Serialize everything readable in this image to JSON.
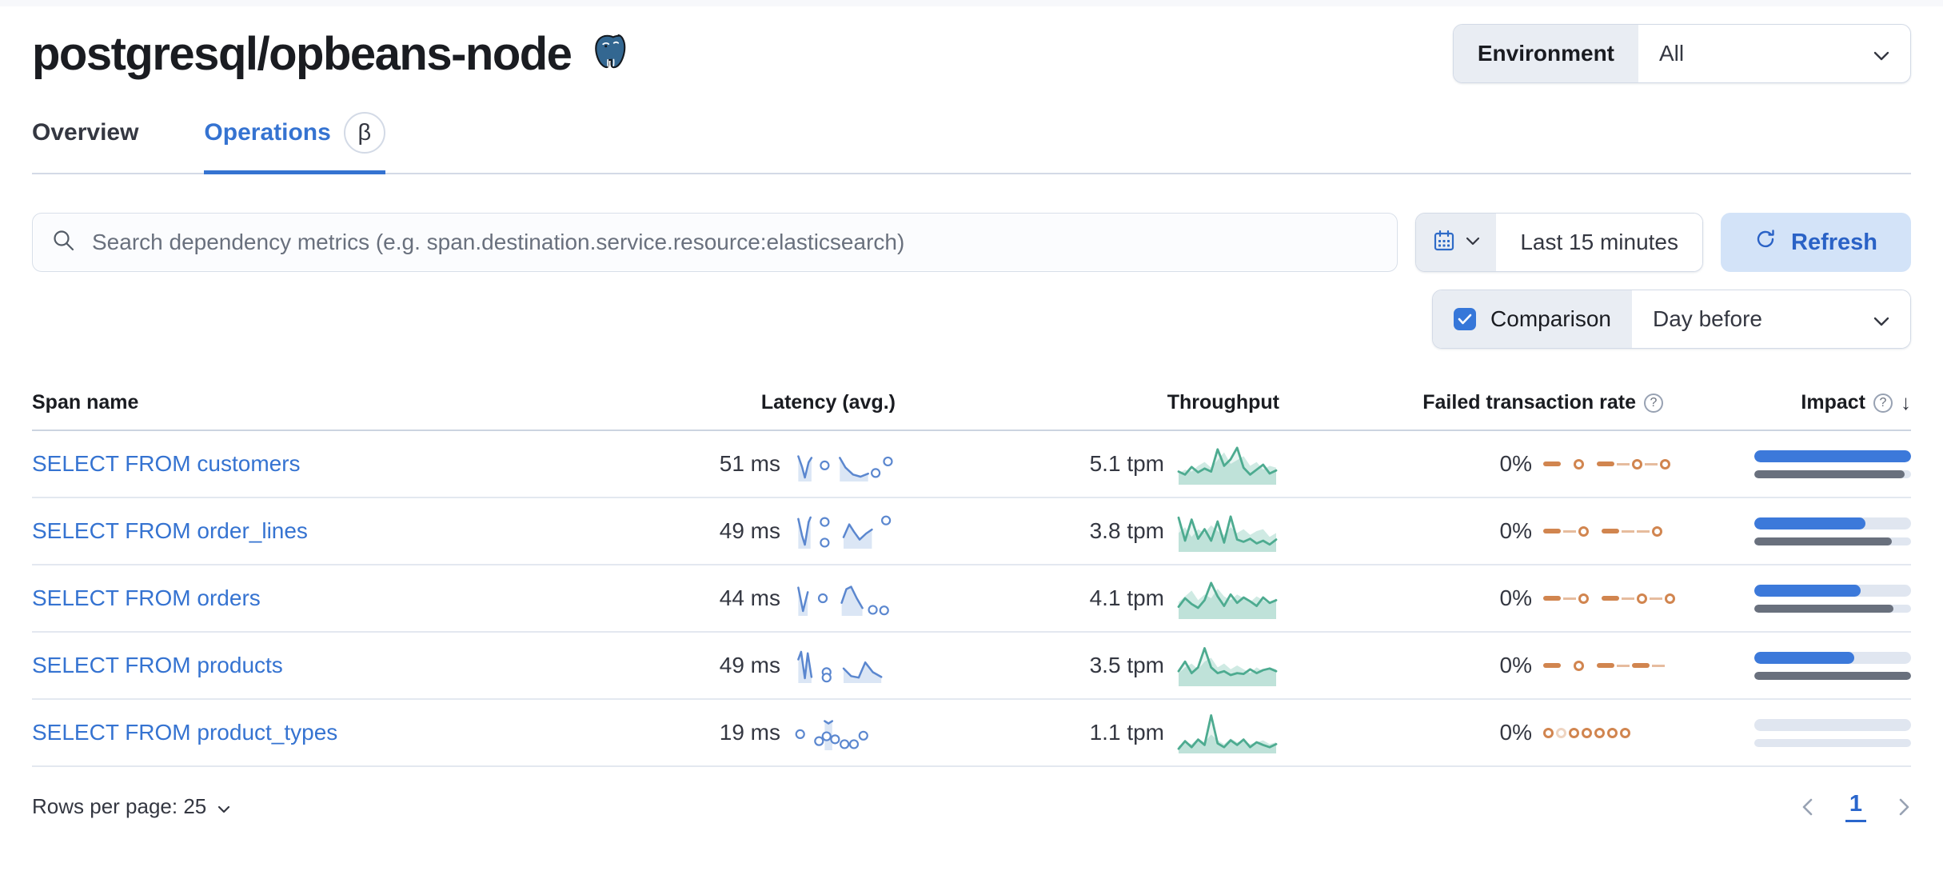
{
  "header": {
    "title": "postgresql/opbeans-node",
    "environment_label": "Environment",
    "environment_value": "All"
  },
  "tabs": [
    {
      "label": "Overview",
      "active": false
    },
    {
      "label": "Operations",
      "active": true,
      "badge": "β"
    }
  ],
  "toolbar": {
    "search_placeholder": "Search dependency metrics (e.g. span.destination.service.resource:elasticsearch)",
    "time_range": "Last 15 minutes",
    "refresh_label": "Refresh",
    "comparison_label": "Comparison",
    "comparison_checked": true,
    "comparison_value": "Day before"
  },
  "icons": {
    "question_mark": "?",
    "sort_desc": "↓"
  },
  "table": {
    "columns": {
      "span": "Span name",
      "latency": "Latency (avg.)",
      "throughput": "Throughput",
      "failed": "Failed transaction rate",
      "impact": "Impact"
    },
    "rows": [
      {
        "span_name": "SELECT FROM customers",
        "latency": "51 ms",
        "throughput": "5.1 tpm",
        "failed_rate": "0%",
        "impact_pct": 100,
        "impact_prev_pct": 96,
        "latency_spark": {
          "lines": [
            [
              [
                0.02,
                0.75
              ],
              [
                0.06,
                0.4
              ],
              [
                0.09,
                0.05
              ],
              [
                0.13,
                0.55
              ],
              [
                0.16,
                0.7
              ]
            ],
            [
              [
                0.46,
                0.7
              ],
              [
                0.52,
                0.38
              ],
              [
                0.6,
                0.15
              ],
              [
                0.68,
                0.08
              ],
              [
                0.76,
                0.18
              ]
            ]
          ],
          "dots": [
            [
              0.3,
              0.45
            ],
            [
              0.84,
              0.2
            ],
            [
              0.97,
              0.58
            ]
          ]
        },
        "throughput_spark": {
          "line": [
            0.3,
            0.22,
            0.42,
            0.28,
            0.38,
            0.3,
            0.88,
            0.45,
            0.62,
            0.92,
            0.4,
            0.22,
            0.35,
            0.48,
            0.25,
            0.33
          ],
          "comparison": [
            0.25,
            0.35,
            0.3,
            0.45,
            0.55,
            0.4,
            0.6,
            0.8,
            0.5,
            0.6,
            0.7,
            0.45,
            0.55,
            0.35,
            0.45,
            0.4
          ]
        },
        "failed_spark": [
          "dash",
          "gap",
          "ring",
          "gap",
          "dash",
          "thin",
          "ring",
          "thin",
          "ring"
        ]
      },
      {
        "span_name": "SELECT FROM order_lines",
        "latency": "49 ms",
        "throughput": "3.8 tpm",
        "failed_rate": "0%",
        "impact_pct": 71,
        "impact_prev_pct": 88,
        "latency_spark": {
          "lines": [
            [
              [
                0.02,
                0.9
              ],
              [
                0.06,
                0.35
              ],
              [
                0.09,
                0.05
              ],
              [
                0.13,
                0.8
              ],
              [
                0.15,
                0.95
              ]
            ],
            [
              [
                0.5,
                0.3
              ],
              [
                0.56,
                0.72
              ],
              [
                0.61,
                0.48
              ],
              [
                0.67,
                0.22
              ],
              [
                0.74,
                0.42
              ],
              [
                0.8,
                0.55
              ]
            ]
          ],
          "dots": [
            [
              0.3,
              0.8
            ],
            [
              0.3,
              0.12
            ],
            [
              0.95,
              0.85
            ]
          ]
        },
        "throughput_spark": {
          "line": [
            0.85,
            0.25,
            0.8,
            0.3,
            0.55,
            0.25,
            0.75,
            0.2,
            0.88,
            0.28,
            0.22,
            0.3,
            0.18,
            0.25,
            0.15,
            0.28
          ],
          "comparison": [
            0.45,
            0.6,
            0.35,
            0.55,
            0.45,
            0.65,
            0.5,
            0.4,
            0.6,
            0.45,
            0.55,
            0.4,
            0.5,
            0.55,
            0.35,
            0.45
          ]
        },
        "failed_spark": [
          "dash",
          "thin",
          "ring",
          "gap",
          "dash",
          "thin",
          "thin",
          "ring"
        ]
      },
      {
        "span_name": "SELECT FROM orders",
        "latency": "44 ms",
        "throughput": "4.1 tpm",
        "failed_rate": "0%",
        "impact_pct": 68,
        "impact_prev_pct": 89,
        "latency_spark": {
          "lines": [
            [
              [
                0.02,
                0.85
              ],
              [
                0.07,
                0.08
              ],
              [
                0.12,
                0.7
              ]
            ],
            [
              [
                0.48,
                0.35
              ],
              [
                0.53,
                0.8
              ],
              [
                0.58,
                0.88
              ],
              [
                0.64,
                0.5
              ],
              [
                0.7,
                0.18
              ]
            ]
          ],
          "dots": [
            [
              0.28,
              0.5
            ],
            [
              0.81,
              0.12
            ],
            [
              0.93,
              0.1
            ]
          ]
        },
        "throughput_spark": {
          "line": [
            0.28,
            0.5,
            0.35,
            0.25,
            0.45,
            0.9,
            0.55,
            0.3,
            0.6,
            0.38,
            0.52,
            0.42,
            0.3,
            0.52,
            0.38,
            0.45
          ],
          "comparison": [
            0.4,
            0.55,
            0.7,
            0.45,
            0.6,
            0.5,
            0.75,
            0.55,
            0.45,
            0.6,
            0.5,
            0.4,
            0.55,
            0.45,
            0.35,
            0.5
          ]
        },
        "failed_spark": [
          "dash",
          "thin",
          "ring",
          "gap",
          "dash",
          "thin",
          "ring",
          "thin",
          "ring"
        ]
      },
      {
        "span_name": "SELECT FROM products",
        "latency": "49 ms",
        "throughput": "3.5 tpm",
        "failed_rate": "0%",
        "impact_pct": 64,
        "impact_prev_pct": 100,
        "latency_spark": {
          "lines": [
            [
              [
                0.02,
                0.7
              ],
              [
                0.05,
                0.95
              ],
              [
                0.09,
                0.08
              ],
              [
                0.12,
                0.9
              ],
              [
                0.16,
                0.12
              ]
            ],
            [
              [
                0.5,
                0.4
              ],
              [
                0.58,
                0.15
              ],
              [
                0.66,
                0.1
              ],
              [
                0.73,
                0.6
              ],
              [
                0.81,
                0.28
              ],
              [
                0.9,
                0.12
              ]
            ]
          ],
          "dots": [
            [
              0.32,
              0.28
            ],
            [
              0.32,
              0.1
            ]
          ]
        },
        "throughput_spark": {
          "line": [
            0.35,
            0.6,
            0.3,
            0.45,
            0.95,
            0.45,
            0.3,
            0.35,
            0.25,
            0.3,
            0.28,
            0.4,
            0.3,
            0.38,
            0.42,
            0.35
          ],
          "comparison": [
            0.3,
            0.45,
            0.55,
            0.4,
            0.6,
            0.7,
            0.45,
            0.55,
            0.4,
            0.5,
            0.4,
            0.3,
            0.45,
            0.35,
            0.45,
            0.4
          ]
        },
        "failed_spark": [
          "dash",
          "gap",
          "ring",
          "gap",
          "dash",
          "thin",
          "dash",
          "thin"
        ]
      },
      {
        "span_name": "SELECT FROM product_types",
        "latency": "19 ms",
        "throughput": "1.1 tpm",
        "failed_rate": "0%",
        "impact_pct": 0,
        "impact_prev_pct": 0,
        "latency_spark": {
          "lines": [
            [
              [
                0.3,
                0.88
              ],
              [
                0.34,
                0.8
              ],
              [
                0.38,
                0.88
              ]
            ]
          ],
          "dots": [
            [
              0.04,
              0.45
            ],
            [
              0.24,
              0.22
            ],
            [
              0.32,
              0.38
            ],
            [
              0.41,
              0.28
            ],
            [
              0.51,
              0.12
            ],
            [
              0.61,
              0.12
            ],
            [
              0.71,
              0.4
            ]
          ]
        },
        "throughput_spark": {
          "line": [
            0.08,
            0.28,
            0.12,
            0.32,
            0.18,
            0.95,
            0.22,
            0.12,
            0.3,
            0.18,
            0.32,
            0.12,
            0.25,
            0.18,
            0.12,
            0.2
          ],
          "comparison": [
            0.15,
            0.25,
            0.2,
            0.35,
            0.25,
            0.45,
            0.3,
            0.2,
            0.35,
            0.25,
            0.3,
            0.2,
            0.25,
            0.3,
            0.2,
            0.25
          ]
        },
        "failed_spark": [
          "ring",
          "ring-faded",
          "ring",
          "ring",
          "ring",
          "ring",
          "ring"
        ]
      }
    ]
  },
  "footer": {
    "rows_per_page_label": "Rows per page: 25",
    "page": "1"
  },
  "colors": {
    "link_blue": "#3573d1",
    "spark_blue": "#5b87cf",
    "spark_blue_fill": "#dbe6f5",
    "spark_green": "#4dab90",
    "spark_orange": "#d1854f",
    "impact_blue": "#3c79da",
    "impact_gray": "#69707d"
  }
}
